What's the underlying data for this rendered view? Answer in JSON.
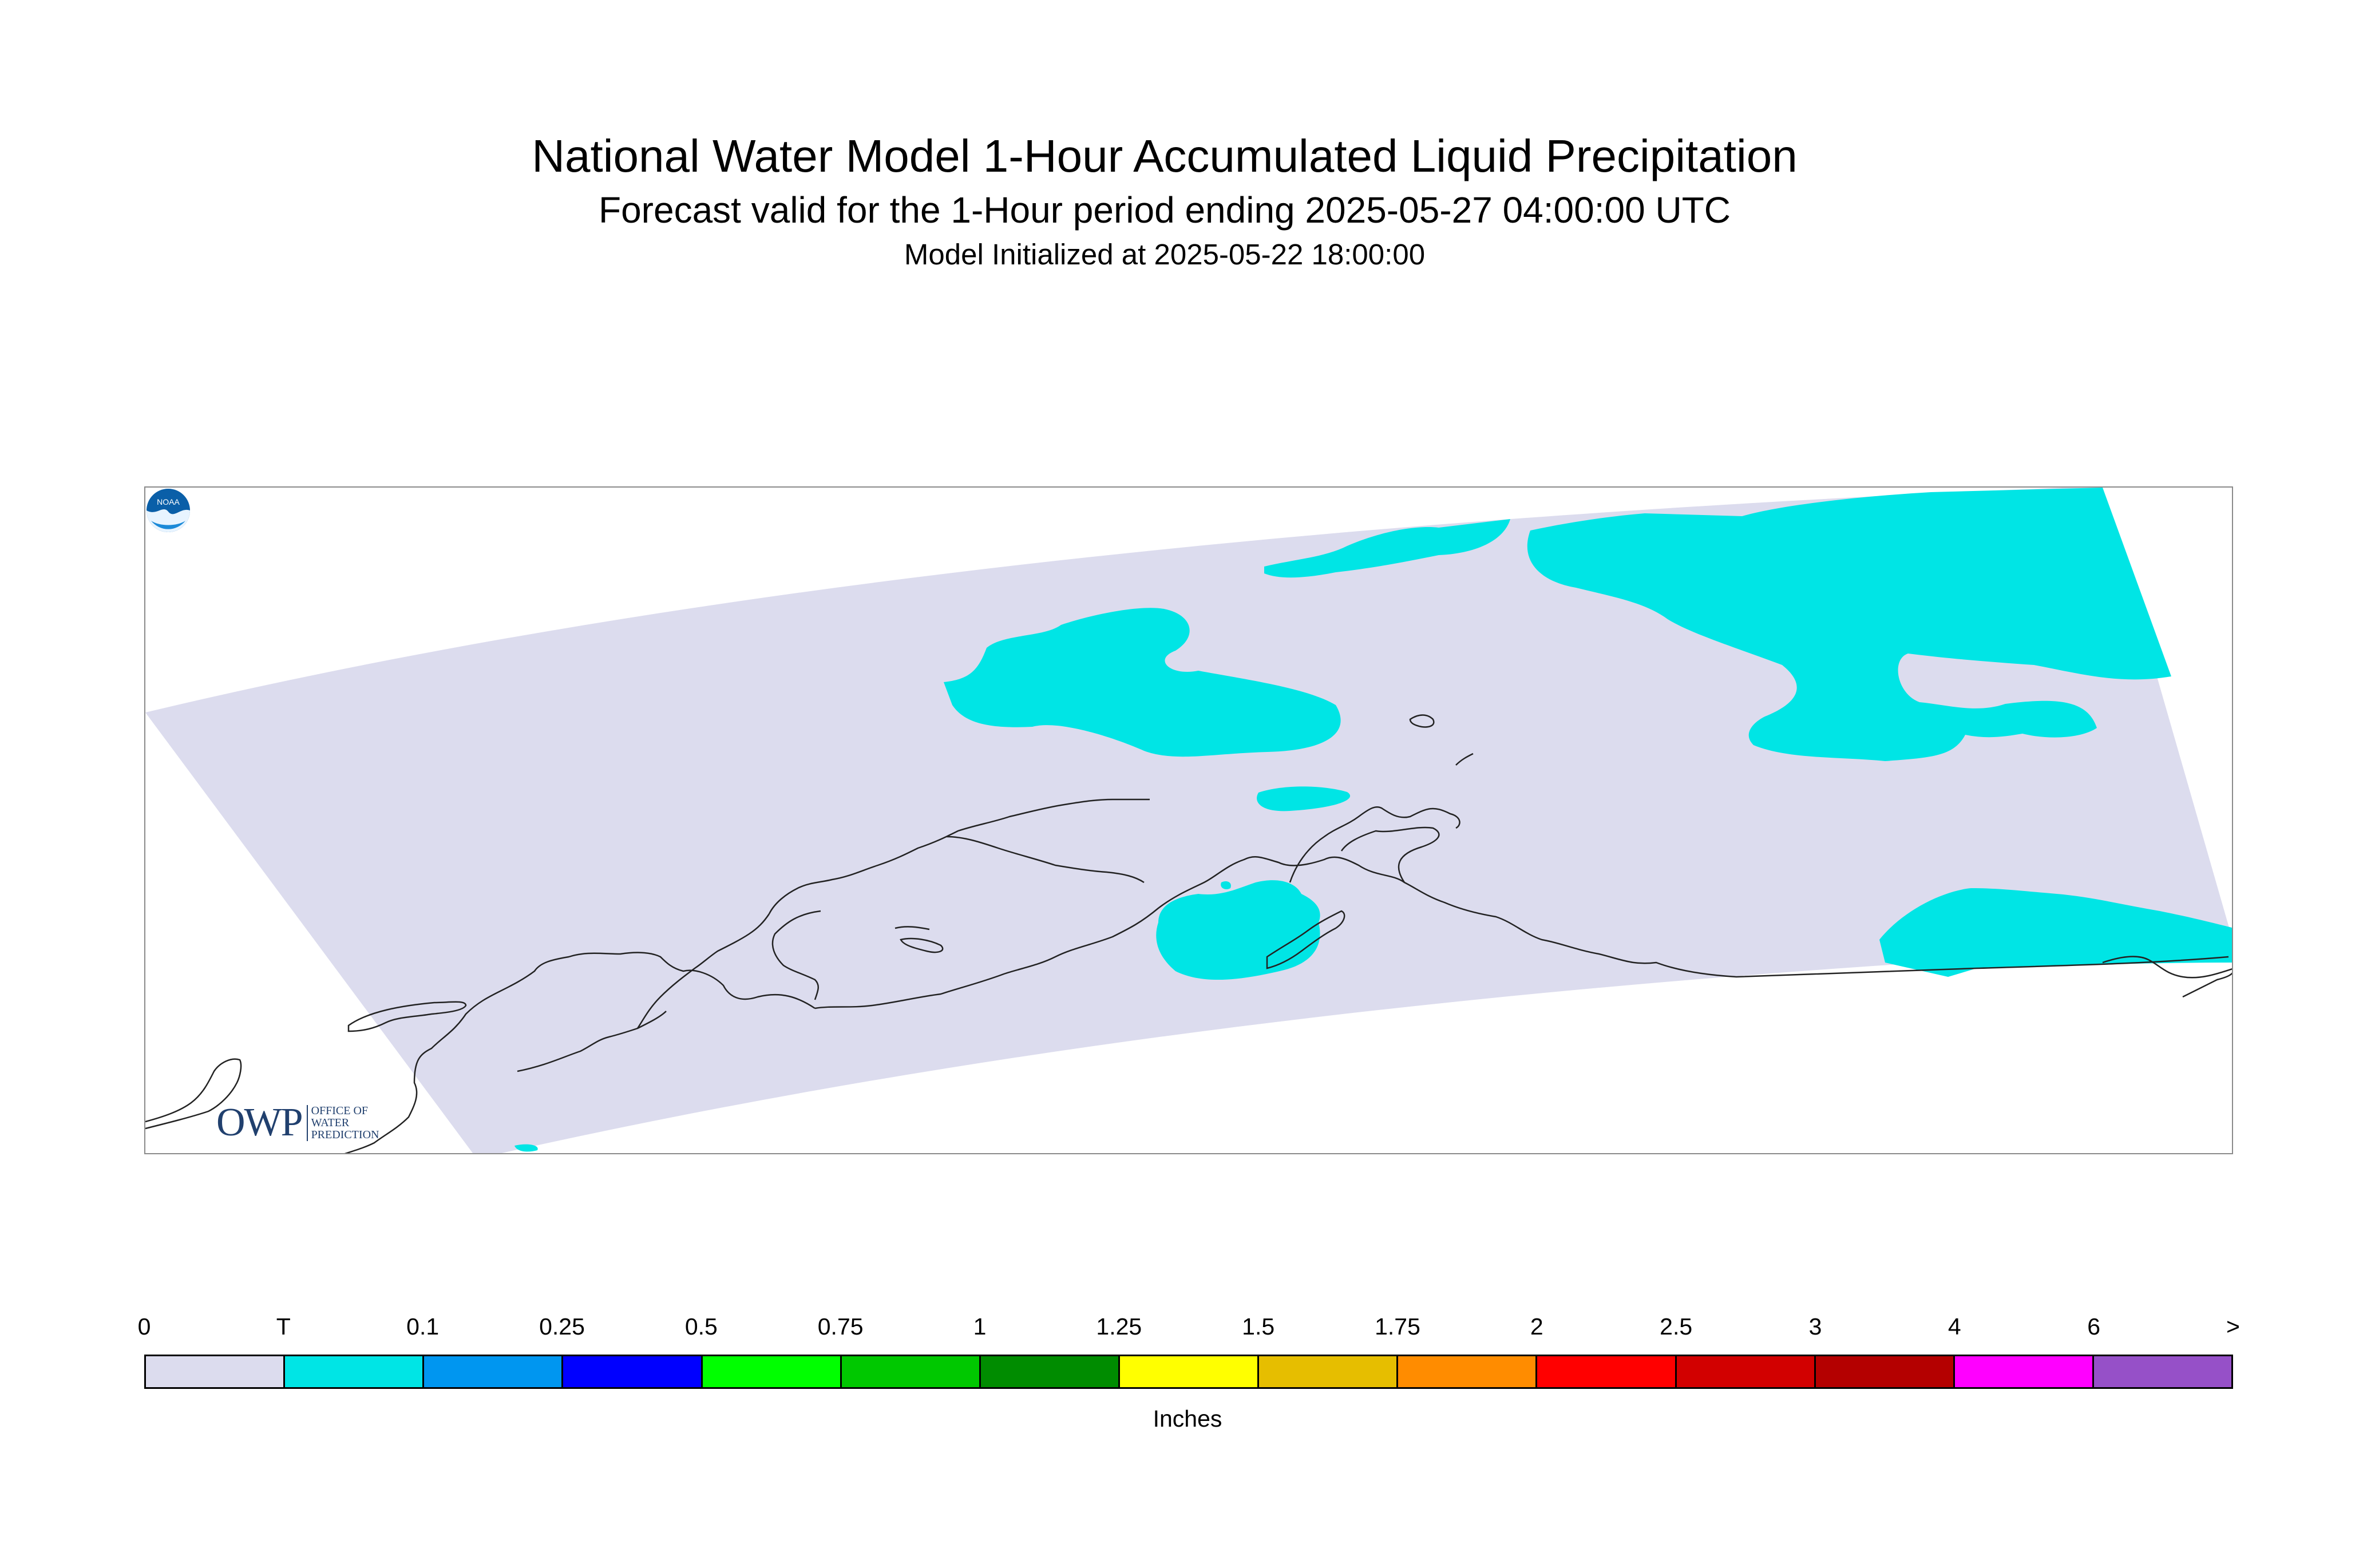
{
  "header": {
    "title": "National Water Model 1-Hour Accumulated Liquid Precipitation",
    "subtitle": "Forecast valid for the 1-Hour period ending 2025-05-27 04:00:00 UTC",
    "initialized": "Model Initialized at 2025-05-22 18:00:00"
  },
  "map": {
    "domain_fill_color": "#dcdcee",
    "trace_fill_color": "#00e5e5",
    "coastline_color": "#222222",
    "logos": {
      "owp_mark": "OWP",
      "owp_text_line1": "OFFICE OF",
      "owp_text_line2": "WATER",
      "owp_text_line3": "PREDICTION",
      "noaa_text": "NOAA"
    }
  },
  "legend": {
    "labels": [
      "0",
      "T",
      "0.1",
      "0.25",
      "0.5",
      "0.75",
      "1",
      "1.25",
      "1.5",
      "1.75",
      "2",
      "2.5",
      "3",
      "4",
      "6",
      ">"
    ],
    "colors": [
      "#dcdcee",
      "#00e5e5",
      "#0096f0",
      "#0000ff",
      "#00ff00",
      "#00c800",
      "#008c00",
      "#ffff00",
      "#e6be00",
      "#ff8c00",
      "#ff0000",
      "#d20000",
      "#b40000",
      "#ff00ff",
      "#9650c8"
    ],
    "units": "Inches"
  }
}
